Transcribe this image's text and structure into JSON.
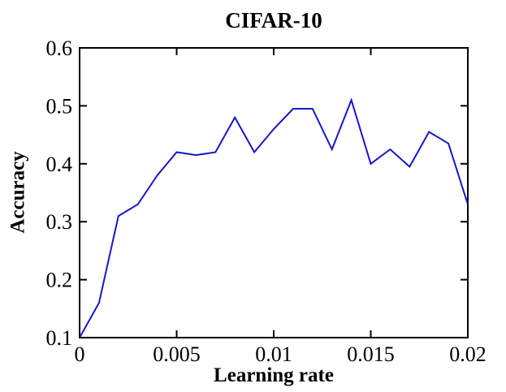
{
  "figure": {
    "background": "#ffffff",
    "text_color": "#000000"
  },
  "chart_data": {
    "type": "line",
    "title": "CIFAR-10",
    "xlabel": "Learning rate",
    "ylabel": "Accuracy",
    "x": [
      0,
      0.001,
      0.002,
      0.003,
      0.004,
      0.005,
      0.006,
      0.007,
      0.008,
      0.009,
      0.01,
      0.011,
      0.012,
      0.013,
      0.014,
      0.015,
      0.016,
      0.017,
      0.018,
      0.019,
      0.02
    ],
    "y": [
      0.1,
      0.16,
      0.31,
      0.33,
      0.38,
      0.42,
      0.415,
      0.42,
      0.48,
      0.42,
      0.46,
      0.495,
      0.495,
      0.425,
      0.51,
      0.4,
      0.425,
      0.395,
      0.455,
      0.435,
      0.33
    ],
    "xlim": [
      0,
      0.02
    ],
    "ylim": [
      0.1,
      0.6
    ],
    "xticks": {
      "values": [
        0,
        0.005,
        0.01,
        0.015,
        0.02
      ],
      "labels": [
        "0",
        "0.005",
        "0.01",
        "0.015",
        "0.02"
      ]
    },
    "yticks": {
      "values": [
        0.1,
        0.2,
        0.3,
        0.4,
        0.5,
        0.6
      ],
      "labels": [
        "0.1",
        "0.2",
        "0.3",
        "0.4",
        "0.5",
        "0.6"
      ]
    },
    "line_color": "#1616cd",
    "axis_color": "#000000",
    "grid": false,
    "legend": null
  }
}
